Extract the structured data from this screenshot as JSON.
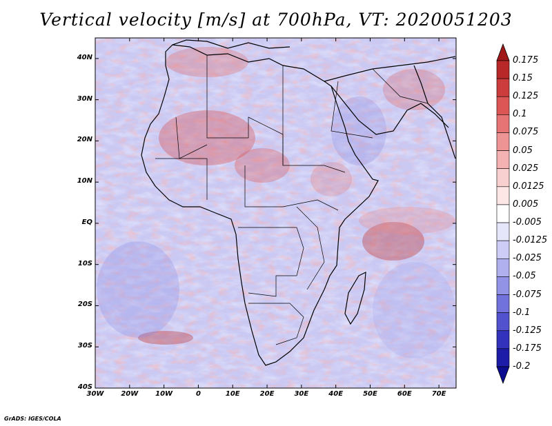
{
  "title": "Vertical velocity [m/s] at 700hPa, VT: 2020051203",
  "footer": "GrADS: IGES/COLA",
  "map": {
    "lon_range": [
      -30,
      75
    ],
    "lat_range": [
      -40,
      45
    ],
    "lat_ticks": [
      "40N",
      "30N",
      "20N",
      "10N",
      "EQ",
      "10S",
      "20S",
      "30S",
      "40S"
    ],
    "lat_values": [
      40,
      30,
      20,
      10,
      0,
      -10,
      -20,
      -30,
      -40
    ],
    "lon_ticks": [
      "30W",
      "20W",
      "10W",
      "0",
      "10E",
      "20E",
      "30E",
      "40E",
      "50E",
      "60E",
      "70E"
    ],
    "lon_values": [
      -30,
      -20,
      -10,
      0,
      10,
      20,
      30,
      40,
      50,
      60,
      70
    ],
    "field": "vertical velocity",
    "units": "m/s",
    "level": "700hPa",
    "valid_time": "2020051203"
  },
  "colorbar": {
    "labels": [
      "0.175",
      "0.15",
      "0.125",
      "0.1",
      "0.075",
      "0.05",
      "0.025",
      "0.0125",
      "0.005",
      "-0.005",
      "-0.0125",
      "-0.025",
      "-0.05",
      "-0.075",
      "-0.1",
      "-0.125",
      "-0.175",
      "-0.2"
    ],
    "colors": [
      "#a01818",
      "#b82828",
      "#cc3c3c",
      "#dc5656",
      "#e67474",
      "#ee9494",
      "#f4b2b2",
      "#f9d0d0",
      "#fce6e6",
      "#ffffff",
      "#e6e6fa",
      "#ccccf6",
      "#b0b0ef",
      "#9292e6",
      "#7272dc",
      "#5252ce",
      "#3232bc",
      "#1c1ca8",
      "#0c0c90"
    ]
  }
}
